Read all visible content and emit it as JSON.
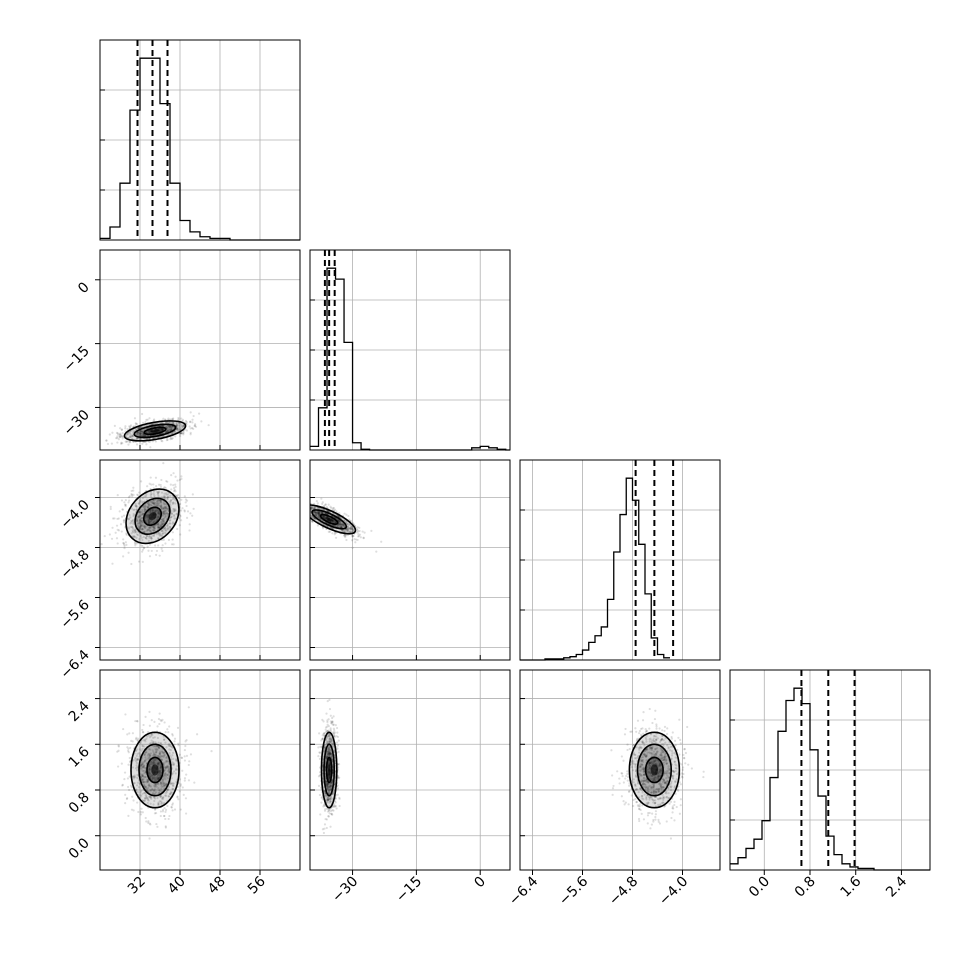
{
  "chart_data": {
    "type": "corner",
    "parameters": [
      {
        "key": "p0",
        "range": [
          24,
          64
        ],
        "ticks": [
          32,
          40,
          48,
          56
        ],
        "tick_labels": [
          "32",
          "40",
          "48",
          "56"
        ]
      },
      {
        "key": "p1",
        "range": [
          -40,
          7
        ],
        "ticks": [
          -30,
          -15,
          0
        ],
        "tick_labels": [
          "−30",
          "−15",
          "0"
        ]
      },
      {
        "key": "p2",
        "range": [
          -6.6,
          -3.4
        ],
        "ticks": [
          -6.4,
          -5.6,
          -4.8,
          -4.0
        ],
        "tick_labels": [
          "−6.4",
          "−5.6",
          "−4.8",
          "−4.0"
        ]
      },
      {
        "key": "p3",
        "range": [
          -0.6,
          2.9
        ],
        "ticks": [
          0.0,
          0.8,
          1.6,
          2.4
        ],
        "tick_labels": [
          "0.0",
          "0.8",
          "1.6",
          "2.4"
        ]
      }
    ],
    "histograms": [
      {
        "param": 0,
        "quantiles": [
          31.5,
          34.5,
          37.5
        ],
        "bins": {
          "start": 24,
          "step": 2,
          "counts": [
            1,
            8,
            35,
            80,
            112,
            112,
            84,
            35,
            12,
            5,
            2,
            1,
            1,
            0,
            0,
            0,
            0,
            0,
            0,
            0
          ]
        }
      },
      {
        "param": 1,
        "quantiles": [
          -36.5,
          -35.5,
          -34.2
        ],
        "bins": {
          "start": -40,
          "step": 2,
          "counts": [
            5,
            58,
            250,
            235,
            148,
            10,
            1,
            0,
            0,
            0,
            0,
            0,
            0,
            0,
            0,
            0,
            0,
            0,
            0,
            3,
            5,
            3,
            1,
            0
          ]
        }
      },
      {
        "param": 2,
        "quantiles": [
          -4.75,
          -4.45,
          -4.15
        ],
        "bins": {
          "start": -6.6,
          "step": 0.1,
          "counts": [
            0,
            0,
            0,
            0,
            1,
            1,
            1,
            2,
            3,
            5,
            9,
            16,
            22,
            30,
            55,
            98,
            132,
            165,
            145,
            105,
            60,
            20,
            5,
            2
          ]
        }
      },
      {
        "param": 3,
        "quantiles": [
          0.65,
          1.12,
          1.58
        ],
        "bins": {
          "start": -0.6,
          "step": 0.14,
          "counts": [
            4,
            8,
            14,
            20,
            32,
            60,
            90,
            110,
            118,
            108,
            78,
            48,
            22,
            10,
            4,
            2,
            1,
            1,
            0,
            0,
            0,
            0,
            0,
            0,
            0
          ]
        }
      }
    ],
    "joint_panels": [
      {
        "x": 0,
        "y": 1,
        "peak": [
          35,
          -35.5
        ],
        "contours": [
          {
            "sx": 2.2,
            "sy": 0.7,
            "rot": -10
          },
          {
            "sx": 4.2,
            "sy": 1.3,
            "rot": -10
          },
          {
            "sx": 6.2,
            "sy": 2.0,
            "rot": -10
          }
        ]
      },
      {
        "x": 0,
        "y": 2,
        "peak": [
          34.5,
          -4.3
        ],
        "contours": [
          {
            "sx": 2.0,
            "sy": 0.12,
            "rot": -48
          },
          {
            "sx": 4.0,
            "sy": 0.24,
            "rot": -48
          },
          {
            "sx": 6.0,
            "sy": 0.37,
            "rot": -48
          }
        ]
      },
      {
        "x": 1,
        "y": 2,
        "peak": [
          -35.5,
          -4.35
        ],
        "contours": [
          {
            "sx": 0.7,
            "sy": 0.15,
            "rot": -65
          },
          {
            "sx": 1.3,
            "sy": 0.3,
            "rot": -65
          },
          {
            "sx": 2.0,
            "sy": 0.46,
            "rot": -65
          }
        ]
      },
      {
        "x": 0,
        "y": 3,
        "peak": [
          35,
          1.15
        ],
        "contours": [
          {
            "sx": 1.6,
            "sy": 0.22,
            "rot": 0
          },
          {
            "sx": 3.2,
            "sy": 0.45,
            "rot": 0
          },
          {
            "sx": 4.8,
            "sy": 0.66,
            "rot": 0
          }
        ]
      },
      {
        "x": 1,
        "y": 3,
        "peak": [
          -35.5,
          1.15
        ],
        "contours": [
          {
            "sx": 0.6,
            "sy": 0.22,
            "rot": 0
          },
          {
            "sx": 1.2,
            "sy": 0.45,
            "rot": 0
          },
          {
            "sx": 1.8,
            "sy": 0.66,
            "rot": 0
          }
        ]
      },
      {
        "x": 2,
        "y": 3,
        "peak": [
          -4.45,
          1.15
        ],
        "contours": [
          {
            "sx": 0.14,
            "sy": 0.22,
            "rot": 0
          },
          {
            "sx": 0.27,
            "sy": 0.45,
            "rot": 0
          },
          {
            "sx": 0.4,
            "sy": 0.66,
            "rot": 0
          }
        ]
      }
    ],
    "grid": true,
    "title": "",
    "xlabel": "",
    "ylabel": ""
  }
}
